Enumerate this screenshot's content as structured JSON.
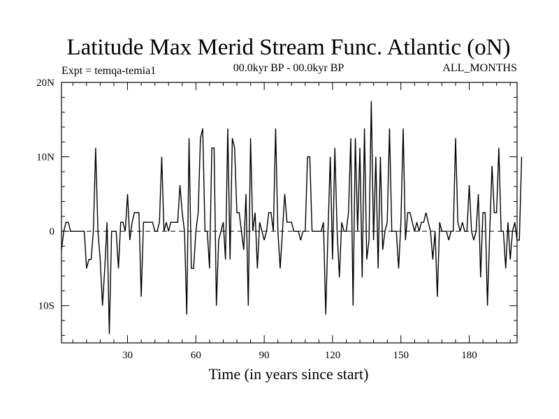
{
  "chart_data": {
    "type": "line",
    "title": "Latitude Max Merid Stream Func. Atlantic (oN)",
    "subtitle_left": "Expt = temqa-temia1",
    "subtitle_center": "00.0kyr BP - 00.0kyr BP",
    "subtitle_right": "ALL_MONTHS",
    "xlabel": "Time (in years since start)",
    "ylabel": "",
    "xlim": [
      1,
      201
    ],
    "ylim": [
      -15,
      20
    ],
    "x_ticks": [
      30,
      60,
      90,
      120,
      150,
      180
    ],
    "x_tick_labels": [
      "30",
      "60",
      "90",
      "120",
      "150",
      "180"
    ],
    "y_ticks": [
      -10,
      0,
      10,
      20
    ],
    "y_tick_labels": [
      "10S",
      "0",
      "10N",
      "20N"
    ],
    "reference_line": 0,
    "series": [
      {
        "name": "Latitude Max Merid Stream Func.",
        "x_start": 1,
        "values": [
          -2.5,
          0,
          1.2,
          1.2,
          0,
          0,
          0,
          0,
          0,
          0,
          0,
          -5,
          -3.8,
          -3.8,
          0,
          11.2,
          0,
          -3.8,
          -10,
          -5,
          1.2,
          -13.8,
          0,
          0,
          0,
          -5,
          1.2,
          1.2,
          0,
          5,
          -1.2,
          1.2,
          2.5,
          2.5,
          2.5,
          -8.8,
          1.2,
          1.2,
          1.2,
          1.2,
          1.2,
          0,
          0,
          1.2,
          10,
          0,
          1.2,
          0,
          1.2,
          1.2,
          1.2,
          1.2,
          6.2,
          2.5,
          0,
          -11.2,
          12.5,
          -5,
          -5,
          0,
          2.5,
          12.5,
          13.8,
          0,
          0,
          -5,
          11.2,
          11.2,
          -10,
          -1.2,
          0,
          1.2,
          -3.8,
          13.8,
          -3.8,
          12.5,
          11.2,
          2.5,
          2.5,
          0,
          -2.5,
          5,
          -10,
          12.5,
          0,
          2.5,
          -5,
          1.2,
          0,
          -1.2,
          0,
          2.5,
          2.5,
          0,
          13.8,
          0,
          -5,
          0,
          5,
          1.2,
          1.2,
          1.2,
          0,
          0,
          0,
          -1.2,
          0,
          0,
          10,
          10,
          0,
          0,
          0,
          0,
          0,
          1.2,
          -11.2,
          0,
          10,
          -3.8,
          11.2,
          0,
          -6.2,
          1.2,
          0,
          0,
          2.5,
          12.5,
          -10,
          12.5,
          0,
          11.2,
          -6.2,
          13.8,
          -3.8,
          -1.2,
          17.5,
          -1.2,
          10,
          -5,
          10,
          -2.5,
          0,
          1.2,
          13.8,
          0,
          0,
          0,
          -5,
          1.2,
          13.8,
          -1.2,
          2.5,
          2.5,
          1.2,
          0,
          1.2,
          0,
          1.2,
          1.2,
          2.5,
          1.2,
          0,
          -3.8,
          0,
          -8.8,
          1.2,
          0,
          0,
          0,
          -1.2,
          0,
          0,
          12.5,
          1.2,
          0,
          1.2,
          0,
          0,
          6.2,
          0,
          -1.2,
          0,
          5,
          -6.2,
          2.5,
          2.5,
          -10,
          0,
          8.8,
          2.5,
          2.5,
          11.2,
          0,
          0,
          -5,
          1.2,
          -3.8,
          0,
          1.2,
          -1.2,
          -1.2,
          10
        ]
      }
    ]
  }
}
